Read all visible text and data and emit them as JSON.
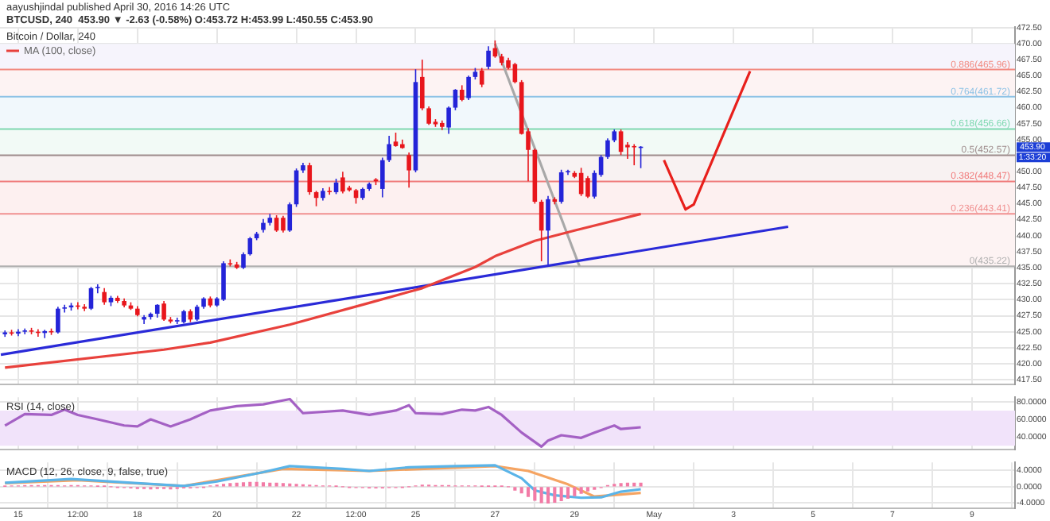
{
  "chart_data": [
    {
      "type": "candlestick",
      "title": "Bitcoin / Dollar, 240",
      "annotations": [
        "aayushjindal published April 30, 2016 14:26 UTC",
        "BTCUSD, 240  453.90 ▼ -2.63 (-0.58%) O:453.72 H:453.99 L:450.55 C:453.90",
        "453.90",
        "1:33:20"
      ],
      "x": [
        "2016-04-14T16:00",
        "2016-04-14T20:00",
        "2016-04-15T00:00",
        "2016-04-15T04:00",
        "2016-04-15T08:00",
        "2016-04-15T12:00",
        "2016-04-15T16:00",
        "2016-04-15T20:00",
        "2016-04-16T00:00",
        "2016-04-16T04:00",
        "2016-04-16T08:00",
        "2016-04-16T12:00",
        "2016-04-16T16:00",
        "2016-04-16T20:00",
        "2016-04-17T00:00",
        "2016-04-17T04:00",
        "2016-04-17T08:00",
        "2016-04-17T12:00",
        "2016-04-17T16:00",
        "2016-04-17T20:00",
        "2016-04-18T00:00",
        "2016-04-18T04:00",
        "2016-04-18T08:00",
        "2016-04-18T12:00",
        "2016-04-18T16:00",
        "2016-04-18T20:00",
        "2016-04-19T00:00",
        "2016-04-19T04:00",
        "2016-04-19T08:00",
        "2016-04-19T12:00",
        "2016-04-19T16:00",
        "2016-04-19T20:00",
        "2016-04-20T00:00",
        "2016-04-20T04:00",
        "2016-04-20T08:00",
        "2016-04-20T12:00",
        "2016-04-20T16:00",
        "2016-04-20T20:00",
        "2016-04-21T00:00",
        "2016-04-21T04:00",
        "2016-04-21T08:00",
        "2016-04-21T12:00",
        "2016-04-21T16:00",
        "2016-04-21T20:00",
        "2016-04-22T00:00",
        "2016-04-22T04:00",
        "2016-04-22T08:00",
        "2016-04-22T12:00",
        "2016-04-22T16:00",
        "2016-04-22T20:00",
        "2016-04-23T00:00",
        "2016-04-23T04:00",
        "2016-04-23T08:00",
        "2016-04-23T12:00",
        "2016-04-23T16:00",
        "2016-04-23T20:00",
        "2016-04-24T00:00",
        "2016-04-24T04:00",
        "2016-04-24T08:00",
        "2016-04-24T12:00",
        "2016-04-24T16:00",
        "2016-04-24T20:00",
        "2016-04-25T00:00",
        "2016-04-25T04:00",
        "2016-04-25T08:00",
        "2016-04-25T12:00",
        "2016-04-25T16:00",
        "2016-04-25T20:00",
        "2016-04-26T00:00",
        "2016-04-26T04:00",
        "2016-04-26T08:00",
        "2016-04-26T12:00",
        "2016-04-26T16:00",
        "2016-04-26T20:00",
        "2016-04-27T00:00",
        "2016-04-27T04:00",
        "2016-04-27T08:00",
        "2016-04-27T12:00",
        "2016-04-27T16:00",
        "2016-04-27T20:00",
        "2016-04-28T00:00",
        "2016-04-28T04:00",
        "2016-04-28T08:00",
        "2016-04-28T12:00",
        "2016-04-28T16:00",
        "2016-04-28T20:00",
        "2016-04-29T00:00",
        "2016-04-29T04:00",
        "2016-04-29T08:00",
        "2016-04-29T12:00",
        "2016-04-29T16:00",
        "2016-04-29T20:00",
        "2016-04-30T00:00",
        "2016-04-30T04:00",
        "2016-04-30T08:00",
        "2016-04-30T12:00",
        "2016-04-30T16:00"
      ],
      "ohlc": [
        [
          424.6,
          425.2,
          424.2,
          424.9
        ],
        [
          424.9,
          425.3,
          424.4,
          424.7
        ],
        [
          424.7,
          425.4,
          424.3,
          425.0
        ],
        [
          425.0,
          425.5,
          424.6,
          425.2
        ],
        [
          425.2,
          425.6,
          424.6,
          425.0
        ],
        [
          425.0,
          425.4,
          424.2,
          424.8
        ],
        [
          424.8,
          425.3,
          424.0,
          425.1
        ],
        [
          425.1,
          425.5,
          424.5,
          424.9
        ],
        [
          424.9,
          428.9,
          424.7,
          428.6
        ],
        [
          428.6,
          429.2,
          428.0,
          428.8
        ],
        [
          428.8,
          429.5,
          428.3,
          429.1
        ],
        [
          429.1,
          429.6,
          428.5,
          428.9
        ],
        [
          428.9,
          429.3,
          428.2,
          428.6
        ],
        [
          428.6,
          432.0,
          428.4,
          431.8
        ],
        [
          431.8,
          432.4,
          431.0,
          432.0
        ],
        [
          431.2,
          431.8,
          429.2,
          429.6
        ],
        [
          429.6,
          430.6,
          429.0,
          430.3
        ],
        [
          430.3,
          430.6,
          429.5,
          429.8
        ],
        [
          429.8,
          430.2,
          428.8,
          429.1
        ],
        [
          429.1,
          429.6,
          428.4,
          428.6
        ],
        [
          428.6,
          429.0,
          427.4,
          427.6
        ],
        [
          426.9,
          427.6,
          426.2,
          427.3
        ],
        [
          427.3,
          428.0,
          426.9,
          427.8
        ],
        [
          427.8,
          429.3,
          427.2,
          429.2
        ],
        [
          429.4,
          429.8,
          426.7,
          426.9
        ],
        [
          426.9,
          427.3,
          426.3,
          426.6
        ],
        [
          426.6,
          427.2,
          426.2,
          426.8
        ],
        [
          426.5,
          428.4,
          426.3,
          428.2
        ],
        [
          428.2,
          428.5,
          426.5,
          426.9
        ],
        [
          426.9,
          429.2,
          426.7,
          428.9
        ],
        [
          428.9,
          430.4,
          428.6,
          430.2
        ],
        [
          430.2,
          430.5,
          428.8,
          429.1
        ],
        [
          429.1,
          430.4,
          428.9,
          430.2
        ],
        [
          430.0,
          436.0,
          429.8,
          435.7
        ],
        [
          435.7,
          436.3,
          435.2,
          435.5
        ],
        [
          435.5,
          435.9,
          434.8,
          435.0
        ],
        [
          435.0,
          437.4,
          434.8,
          437.1
        ],
        [
          437.1,
          439.8,
          436.9,
          439.6
        ],
        [
          439.6,
          440.6,
          439.3,
          440.3
        ],
        [
          440.9,
          442.6,
          440.5,
          442.0
        ],
        [
          442.0,
          443.4,
          441.6,
          442.8
        ],
        [
          442.8,
          443.2,
          440.6,
          440.8
        ],
        [
          442.8,
          443.1,
          440.5,
          440.8
        ],
        [
          440.8,
          445.2,
          440.6,
          444.9
        ],
        [
          444.9,
          450.5,
          444.5,
          450.2
        ],
        [
          450.2,
          451.4,
          449.8,
          451.0
        ],
        [
          451.0,
          451.4,
          446.4,
          446.8
        ],
        [
          446.8,
          447.0,
          444.6,
          445.9
        ],
        [
          445.9,
          447.4,
          445.5,
          447.0
        ],
        [
          447.0,
          447.6,
          446.4,
          446.8
        ],
        [
          446.8,
          448.9,
          446.5,
          448.3
        ],
        [
          449.1,
          450.0,
          446.6,
          446.9
        ],
        [
          447.5,
          447.8,
          446.9,
          447.1
        ],
        [
          447.1,
          447.3,
          445.0,
          445.9
        ],
        [
          445.9,
          447.5,
          445.6,
          447.3
        ],
        [
          447.3,
          448.3,
          447.0,
          448.1
        ],
        [
          448.8,
          449.0,
          447.9,
          448.5
        ],
        [
          447.3,
          452.2,
          446.0,
          451.8
        ],
        [
          451.8,
          455.6,
          451.5,
          454.3
        ],
        [
          454.7,
          456.1,
          453.9,
          454.0
        ],
        [
          454.3,
          455.0,
          453.6,
          453.7
        ],
        [
          452.6,
          453.0,
          447.5,
          450.2
        ],
        [
          450.2,
          466.0,
          449.9,
          464.0
        ],
        [
          464.8,
          467.5,
          459.6,
          459.9
        ],
        [
          459.9,
          460.2,
          457.3,
          457.5
        ],
        [
          457.8,
          458.2,
          457.0,
          457.4
        ],
        [
          457.6,
          458.0,
          456.5,
          457.0
        ],
        [
          456.9,
          460.2,
          455.9,
          460.0
        ],
        [
          460.0,
          462.9,
          459.6,
          462.8
        ],
        [
          462.8,
          463.5,
          461.0,
          461.2
        ],
        [
          461.5,
          465.0,
          461.2,
          464.8
        ],
        [
          464.8,
          466.2,
          464.4,
          465.6
        ],
        [
          465.8,
          466.2,
          463.2,
          463.6
        ],
        [
          466.4,
          469.6,
          466.0,
          468.9
        ],
        [
          469.3,
          470.5,
          467.8,
          468.0
        ],
        [
          468.0,
          468.4,
          466.6,
          467.0
        ],
        [
          467.4,
          467.8,
          466.0,
          466.2
        ],
        [
          466.8,
          467.0,
          463.8,
          464.0
        ],
        [
          464.0,
          464.3,
          455.8,
          455.9
        ],
        [
          456.3,
          456.8,
          448.5,
          453.4
        ],
        [
          453.4,
          453.6,
          445.0,
          445.3
        ],
        [
          445.3,
          445.6,
          436.0,
          440.8
        ],
        [
          440.8,
          446.2,
          435.5,
          445.7
        ],
        [
          445.7,
          446.0,
          444.9,
          445.3
        ],
        [
          445.3,
          450.3,
          445.0,
          449.9
        ],
        [
          449.9,
          450.3,
          449.5,
          450.1
        ],
        [
          449.8,
          450.1,
          449.0,
          449.2
        ],
        [
          449.8,
          450.6,
          446.2,
          446.5
        ],
        [
          449.0,
          449.3,
          445.9,
          446.1
        ],
        [
          446.1,
          450.2,
          445.8,
          449.8
        ],
        [
          449.5,
          452.6,
          449.2,
          452.3
        ],
        [
          452.3,
          455.2,
          452.0,
          454.9
        ],
        [
          454.9,
          456.6,
          454.6,
          456.3
        ],
        [
          456.3,
          456.6,
          452.6,
          453.1
        ],
        [
          454.2,
          454.6,
          452.0,
          453.8
        ],
        [
          454.0,
          454.3,
          451.0,
          453.8
        ],
        [
          453.72,
          453.99,
          450.55,
          453.9
        ]
      ],
      "colors": [
        "#2424d8",
        "#e8161c",
        "#2424d8",
        "#2424d8",
        "#e8161c",
        "#e8161c",
        "#2424d8",
        "#e8161c",
        "#2424d8",
        "#2424d8",
        "#2424d8",
        "#e8161c",
        "#e8161c",
        "#2424d8",
        "#2424d8",
        "#e8161c",
        "#2424d8",
        "#e8161c",
        "#e8161c",
        "#e8161c",
        "#e8161c",
        "#2424d8",
        "#2424d8",
        "#2424d8",
        "#e8161c",
        "#e8161c",
        "#2424d8",
        "#2424d8",
        "#e8161c",
        "#2424d8",
        "#2424d8",
        "#e8161c",
        "#2424d8",
        "#2424d8",
        "#e8161c",
        "#e8161c",
        "#2424d8",
        "#2424d8",
        "#2424d8",
        "#2424d8",
        "#2424d8",
        "#e8161c",
        "#e8161c",
        "#2424d8",
        "#2424d8",
        "#2424d8",
        "#e8161c",
        "#e8161c",
        "#2424d8",
        "#e8161c",
        "#2424d8",
        "#e8161c",
        "#e8161c",
        "#e8161c",
        "#2424d8",
        "#2424d8",
        "#e8161c",
        "#2424d8",
        "#2424d8",
        "#e8161c",
        "#e8161c",
        "#e8161c",
        "#2424d8",
        "#e8161c",
        "#e8161c",
        "#e8161c",
        "#e8161c",
        "#2424d8",
        "#2424d8",
        "#e8161c",
        "#2424d8",
        "#2424d8",
        "#e8161c",
        "#2424d8",
        "#e8161c",
        "#e8161c",
        "#e8161c",
        "#e8161c",
        "#e8161c",
        "#e8161c",
        "#e8161c",
        "#e8161c",
        "#2424d8",
        "#e8161c",
        "#2424d8",
        "#2424d8",
        "#e8161c",
        "#e8161c",
        "#e8161c",
        "#2424d8",
        "#2424d8",
        "#2424d8",
        "#2424d8",
        "#e8161c",
        "#e8161c",
        "#e8161c",
        "#2424d8"
      ],
      "series": [
        {
          "type": "line",
          "name": "MA (100, close)",
          "color": "#e8413c",
          "x": [
            "2016-04-14T16:00",
            "2016-04-18T16:00",
            "2016-04-19T20:00",
            "2016-04-21T20:00",
            "2016-04-23T20:00",
            "2016-04-25T04:00",
            "2016-04-26T12:00",
            "2016-04-27T00:00",
            "2016-04-28T00:00",
            "2016-04-29T00:00",
            "2016-04-30T16:00"
          ],
          "values": [
            419.4,
            422.2,
            423.3,
            426.1,
            429.5,
            431.8,
            435.1,
            436.8,
            439.2,
            440.8,
            443.4
          ]
        },
        {
          "type": "line",
          "color": "#2a2ad8",
          "x": [
            "2016-04-14T13:30",
            "2016-05-04T09:00"
          ],
          "values": [
            421.4,
            441.4
          ]
        },
        {
          "type": "line",
          "color": "#a8a8a8",
          "x": [
            "2016-04-27T00:00",
            "2016-04-29T03:00"
          ],
          "values": [
            470,
            435.2
          ]
        },
        {
          "type": "line",
          "color": "#e8201c",
          "x": [
            "2016-05-01T06:00",
            "2016-05-01T19:00",
            "2016-05-02T00:00",
            "2016-05-03T10:00"
          ],
          "values": [
            451.8,
            444.1,
            444.9,
            465.7
          ]
        }
      ],
      "ref_lines": [
        {
          "axis": "y",
          "value": 465.96,
          "label": "0.886(465.96)",
          "color": "#f28b82"
        },
        {
          "axis": "y",
          "value": 461.72,
          "label": "0.764(461.72)",
          "color": "#8fc3e6"
        },
        {
          "axis": "y",
          "value": 456.66,
          "label": "0.618(456.66)",
          "color": "#7fd8b0"
        },
        {
          "axis": "y",
          "value": 452.57,
          "label": "0.5(452.57)",
          "color": "#9e8c8c"
        },
        {
          "axis": "y",
          "value": 448.47,
          "label": "0.382(448.47)",
          "color": "#f07c7c"
        },
        {
          "axis": "y",
          "value": 443.41,
          "label": "0.236(443.41)",
          "color": "#f09090"
        },
        {
          "axis": "y",
          "value": 435.22,
          "label": "0(435.22)",
          "color": "#b0b0b0"
        }
      ],
      "bands": [
        {
          "axis": "y",
          "from": 435.22,
          "to": 443.41,
          "color": "#fdf3f3"
        },
        {
          "axis": "y",
          "from": 443.41,
          "to": 448.47,
          "color": "#fdf0f0"
        },
        {
          "axis": "y",
          "from": 448.47,
          "to": 452.57,
          "color": "#f8f2f2"
        },
        {
          "axis": "y",
          "from": 452.57,
          "to": 456.66,
          "color": "#f2faf6"
        },
        {
          "axis": "y",
          "from": 456.66,
          "to": 461.72,
          "color": "#f1f8fc"
        },
        {
          "axis": "y",
          "from": 461.72,
          "to": 465.96,
          "color": "#fdf3f3"
        },
        {
          "axis": "y",
          "from": 465.96,
          "to": 469.95,
          "color": "#f6f4fc"
        }
      ],
      "legend": "top left",
      "grid": true,
      "tick_labels": "y",
      "xlim": [
        "2016-04-14T13:00",
        "2016-05-10T02:00"
      ],
      "xticks": [
        {
          "value": "2016-04-15",
          "label": null
        },
        {
          "value": "2016-04-16T12:00",
          "label": null
        },
        {
          "value": "2016-04-18",
          "label": null
        },
        {
          "value": "2016-04-20",
          "label": null
        },
        {
          "value": "2016-04-22",
          "label": null
        },
        {
          "value": "2016-04-23T12:00",
          "label": null
        },
        {
          "value": "2016-04-25",
          "label": null
        },
        {
          "value": "2016-04-27",
          "label": null
        },
        {
          "value": "2016-04-29",
          "label": null
        },
        {
          "value": "2016-05-01",
          "label": null
        },
        {
          "value": "2016-05-03",
          "label": null
        },
        {
          "value": "2016-05-05",
          "label": null
        },
        {
          "value": "2016-05-07",
          "label": null
        },
        {
          "value": "2016-05-09",
          "label": null
        }
      ],
      "ylim": [
        416.8,
        472.6
      ],
      "yticks": [
        {
          "value": 417.5,
          "label": "417.50"
        },
        {
          "value": 420,
          "label": "420.00"
        },
        {
          "value": 422.5,
          "label": "422.50"
        },
        {
          "value": 425,
          "label": "425.00"
        },
        {
          "value": 427.5,
          "label": "427.50"
        },
        {
          "value": 430,
          "label": "430.00"
        },
        {
          "value": 432.5,
          "label": "432.50"
        },
        {
          "value": 435,
          "label": "435.00"
        },
        {
          "value": 437.5,
          "label": "437.50"
        },
        {
          "value": 440,
          "label": "440.00"
        },
        {
          "value": 442.5,
          "label": "442.50"
        },
        {
          "value": 445,
          "label": "445.00"
        },
        {
          "value": 447.5,
          "label": "447.50"
        },
        {
          "value": 450,
          "label": "450.00"
        },
        {
          "value": 452.5,
          "label": null
        },
        {
          "value": 455,
          "label": "455.00"
        },
        {
          "value": 457.5,
          "label": "457.50"
        },
        {
          "value": 460,
          "label": "460.00"
        },
        {
          "value": 462.5,
          "label": "462.50"
        },
        {
          "value": 465,
          "label": "465.00"
        },
        {
          "value": 467.5,
          "label": "467.50"
        },
        {
          "value": 470,
          "label": "470.00"
        },
        {
          "value": 472.5,
          "label": "472.50"
        }
      ]
    },
    {
      "type": "line",
      "title": "RSI (14, close)",
      "x": [
        "2016-04-14T16:00",
        "2016-04-15T04:00",
        "2016-04-15T20:00",
        "2016-04-16T04:00",
        "2016-04-16T12:00",
        "2016-04-17T00:00",
        "2016-04-17T16:00",
        "2016-04-18T00:00",
        "2016-04-18T08:00",
        "2016-04-18T20:00",
        "2016-04-19T08:00",
        "2016-04-19T20:00",
        "2016-04-20T12:00",
        "2016-04-21T04:00",
        "2016-04-21T20:00",
        "2016-04-22T04:00",
        "2016-04-23T04:00",
        "2016-04-23T20:00",
        "2016-04-24T12:00",
        "2016-04-24T20:00",
        "2016-04-25T00:00",
        "2016-04-25T16:00",
        "2016-04-26T04:00",
        "2016-04-26T12:00",
        "2016-04-26T20:00",
        "2016-04-27T04:00",
        "2016-04-27T16:00",
        "2016-04-28T04:00",
        "2016-04-28T08:00",
        "2016-04-28T16:00",
        "2016-04-29T04:00",
        "2016-04-29T12:00",
        "2016-04-30T00:00",
        "2016-04-30T04:00",
        "2016-04-30T16:00"
      ],
      "series": [
        {
          "color": "#a461c4",
          "values": [
            53,
            66,
            65,
            71,
            65,
            60,
            53,
            52,
            60,
            52,
            60,
            70,
            75,
            77,
            83,
            67,
            70,
            65,
            70,
            76,
            67,
            66,
            71,
            70,
            74,
            65,
            45,
            29,
            36,
            42,
            39,
            45,
            53,
            49,
            51
          ]
        }
      ],
      "bands": [
        {
          "axis": "y",
          "from": 30,
          "to": 70,
          "color": "#f1e3fa"
        }
      ],
      "grid": true,
      "tick_labels": "y",
      "xlim": [
        "2016-04-14T13:00",
        "2016-05-10T02:00"
      ],
      "xticks": [
        {
          "value": "2016-04-15",
          "label": null
        },
        {
          "value": "2016-04-16T12:00",
          "label": null
        },
        {
          "value": "2016-04-18",
          "label": null
        },
        {
          "value": "2016-04-20",
          "label": null
        },
        {
          "value": "2016-04-22",
          "label": null
        },
        {
          "value": "2016-04-23T12:00",
          "label": null
        },
        {
          "value": "2016-04-25",
          "label": null
        },
        {
          "value": "2016-04-27",
          "label": null
        },
        {
          "value": "2016-04-29",
          "label": null
        },
        {
          "value": "2016-05-01",
          "label": null
        },
        {
          "value": "2016-05-03",
          "label": null
        },
        {
          "value": "2016-05-05",
          "label": null
        },
        {
          "value": "2016-05-07",
          "label": null
        },
        {
          "value": "2016-05-09",
          "label": null
        }
      ],
      "ylim": [
        26,
        85
      ],
      "yticks": [
        {
          "value": 40,
          "label": "40.0000"
        },
        {
          "value": 60,
          "label": "60.0000"
        },
        {
          "value": 80,
          "label": "80.0000"
        }
      ]
    },
    {
      "type": "bar",
      "title": "MACD (12, 26, close, 9, false, true)",
      "x": [
        "2016-04-14T16:00",
        "2016-04-14T20:00",
        "2016-04-15T00:00",
        "2016-04-15T04:00",
        "2016-04-15T08:00",
        "2016-04-15T12:00",
        "2016-04-15T16:00",
        "2016-04-15T20:00",
        "2016-04-16T00:00",
        "2016-04-16T04:00",
        "2016-04-16T08:00",
        "2016-04-16T12:00",
        "2016-04-16T16:00",
        "2016-04-16T20:00",
        "2016-04-17T00:00",
        "2016-04-17T04:00",
        "2016-04-17T08:00",
        "2016-04-17T12:00",
        "2016-04-17T16:00",
        "2016-04-17T20:00",
        "2016-04-18T00:00",
        "2016-04-18T04:00",
        "2016-04-18T08:00",
        "2016-04-18T12:00",
        "2016-04-18T16:00",
        "2016-04-18T20:00",
        "2016-04-19T00:00",
        "2016-04-19T04:00",
        "2016-04-19T08:00",
        "2016-04-19T12:00",
        "2016-04-19T16:00",
        "2016-04-19T20:00",
        "2016-04-20T00:00",
        "2016-04-20T04:00",
        "2016-04-20T08:00",
        "2016-04-20T12:00",
        "2016-04-20T16:00",
        "2016-04-20T20:00",
        "2016-04-21T00:00",
        "2016-04-21T04:00",
        "2016-04-21T08:00",
        "2016-04-21T12:00",
        "2016-04-21T16:00",
        "2016-04-21T20:00",
        "2016-04-22T00:00",
        "2016-04-22T04:00",
        "2016-04-22T08:00",
        "2016-04-22T12:00",
        "2016-04-22T16:00",
        "2016-04-22T20:00",
        "2016-04-23T00:00",
        "2016-04-23T04:00",
        "2016-04-23T08:00",
        "2016-04-23T12:00",
        "2016-04-23T16:00",
        "2016-04-23T20:00",
        "2016-04-24T00:00",
        "2016-04-24T04:00",
        "2016-04-24T08:00",
        "2016-04-24T12:00",
        "2016-04-24T16:00",
        "2016-04-24T20:00",
        "2016-04-25T00:00",
        "2016-04-25T04:00",
        "2016-04-25T08:00",
        "2016-04-25T12:00",
        "2016-04-25T16:00",
        "2016-04-25T20:00",
        "2016-04-26T00:00",
        "2016-04-26T04:00",
        "2016-04-26T08:00",
        "2016-04-26T12:00",
        "2016-04-26T16:00",
        "2016-04-26T20:00",
        "2016-04-27T00:00",
        "2016-04-27T04:00",
        "2016-04-27T08:00",
        "2016-04-27T12:00",
        "2016-04-27T16:00",
        "2016-04-27T20:00",
        "2016-04-28T00:00",
        "2016-04-28T04:00",
        "2016-04-28T08:00",
        "2016-04-28T12:00",
        "2016-04-28T16:00",
        "2016-04-28T20:00",
        "2016-04-29T00:00",
        "2016-04-29T04:00",
        "2016-04-29T08:00",
        "2016-04-29T12:00",
        "2016-04-29T16:00",
        "2016-04-29T20:00",
        "2016-04-30T00:00",
        "2016-04-30T04:00",
        "2016-04-30T08:00",
        "2016-04-30T12:00",
        "2016-04-30T16:00"
      ],
      "series": [
        {
          "type": "bar",
          "color": "#f27ba6",
          "values": [
            0.1,
            0.2,
            0.2,
            0.3,
            0.3,
            0.3,
            0.3,
            0.3,
            0.3,
            0.2,
            0.3,
            0.3,
            0.2,
            0.2,
            0.1,
            0.1,
            0.0,
            -0.1,
            -0.2,
            -0.3,
            -0.4,
            -0.4,
            -0.5,
            -0.4,
            -0.4,
            -0.5,
            -0.4,
            -0.3,
            -0.3,
            -0.2,
            -0.1,
            0.2,
            0.4,
            0.6,
            0.8,
            0.9,
            1.0,
            1.1,
            1.1,
            1.0,
            0.9,
            0.9,
            0.8,
            0.7,
            0.6,
            0.5,
            0.4,
            0.3,
            0.2,
            0.2,
            0.1,
            0.0,
            -0.1,
            -0.2,
            -0.2,
            -0.3,
            -0.3,
            -0.3,
            -0.2,
            -0.2,
            -0.1,
            0.0,
            0.2,
            0.4,
            0.4,
            0.3,
            0.3,
            0.3,
            0.2,
            0.2,
            0.2,
            0.2,
            0.1,
            0.1,
            0.1,
            0.1,
            0.0,
            -0.8,
            -1.5,
            -2.4,
            -3.3,
            -3.9,
            -4.0,
            -3.8,
            -3.4,
            -2.8,
            -2.2,
            -1.6,
            -1.0,
            -0.6,
            -0.2,
            0.3,
            0.6,
            0.8,
            0.9,
            0.9,
            0.9
          ]
        },
        {
          "type": "line",
          "color": "#5ab4e8",
          "x": [
            "2016-04-14T16:00",
            "2016-04-16T08:00",
            "2016-04-17T20:00",
            "2016-04-19T04:00",
            "2016-04-20T00:00",
            "2016-04-21T04:00",
            "2016-04-21T20:00",
            "2016-04-23T04:00",
            "2016-04-23T20:00",
            "2016-04-24T20:00",
            "2016-04-26T00:00",
            "2016-04-27T00:00",
            "2016-04-27T16:00",
            "2016-04-28T00:00",
            "2016-04-28T12:00",
            "2016-04-29T04:00",
            "2016-04-29T16:00",
            "2016-04-30T04:00",
            "2016-04-30T16:00"
          ],
          "values": [
            1.0,
            1.9,
            1.0,
            0.2,
            1.3,
            3.6,
            5.1,
            4.4,
            3.9,
            4.8,
            5.1,
            5.3,
            2.1,
            -0.9,
            -2.1,
            -2.7,
            -2.6,
            -1.2,
            -0.6
          ]
        },
        {
          "type": "line",
          "color": "#f5a462",
          "x": [
            "2016-04-14T16:00",
            "2016-04-16T12:00",
            "2016-04-19T04:00",
            "2016-04-21T16:00",
            "2016-04-23T20:00",
            "2016-04-27T00:00",
            "2016-04-27T20:00",
            "2016-04-28T20:00",
            "2016-04-29T12:00",
            "2016-04-30T16:00"
          ],
          "values": [
            0.9,
            1.6,
            0.2,
            4.4,
            3.9,
            5.1,
            3.9,
            0.6,
            -2.4,
            -1.5
          ]
        }
      ],
      "grid": true,
      "xlim": [
        "2016-04-14T13:00",
        "2016-05-10T02:00"
      ],
      "xticks": [
        {
          "value": "2016-04-15",
          "label": "15"
        },
        {
          "value": "2016-04-16T12:00",
          "label": "12:00"
        },
        {
          "value": "2016-04-18",
          "label": "18"
        },
        {
          "value": "2016-04-20",
          "label": "20"
        },
        {
          "value": "2016-04-22",
          "label": "22"
        },
        {
          "value": "2016-04-23T12:00",
          "label": "12:00"
        },
        {
          "value": "2016-04-25",
          "label": "25"
        },
        {
          "value": "2016-04-27",
          "label": "27"
        },
        {
          "value": "2016-04-29",
          "label": "29"
        },
        {
          "value": "2016-05-01",
          "label": "May"
        },
        {
          "value": "2016-05-03",
          "label": "3"
        },
        {
          "value": "2016-05-05",
          "label": "5"
        },
        {
          "value": "2016-05-07",
          "label": "7"
        },
        {
          "value": "2016-05-09",
          "label": "9"
        }
      ],
      "ylim": [
        -5.2,
        6
      ],
      "yticks": [
        {
          "value": -4,
          "label": "-4.0000"
        },
        {
          "value": 0,
          "label": "0.0000"
        },
        {
          "value": 4,
          "label": "4.0000"
        }
      ]
    }
  ]
}
